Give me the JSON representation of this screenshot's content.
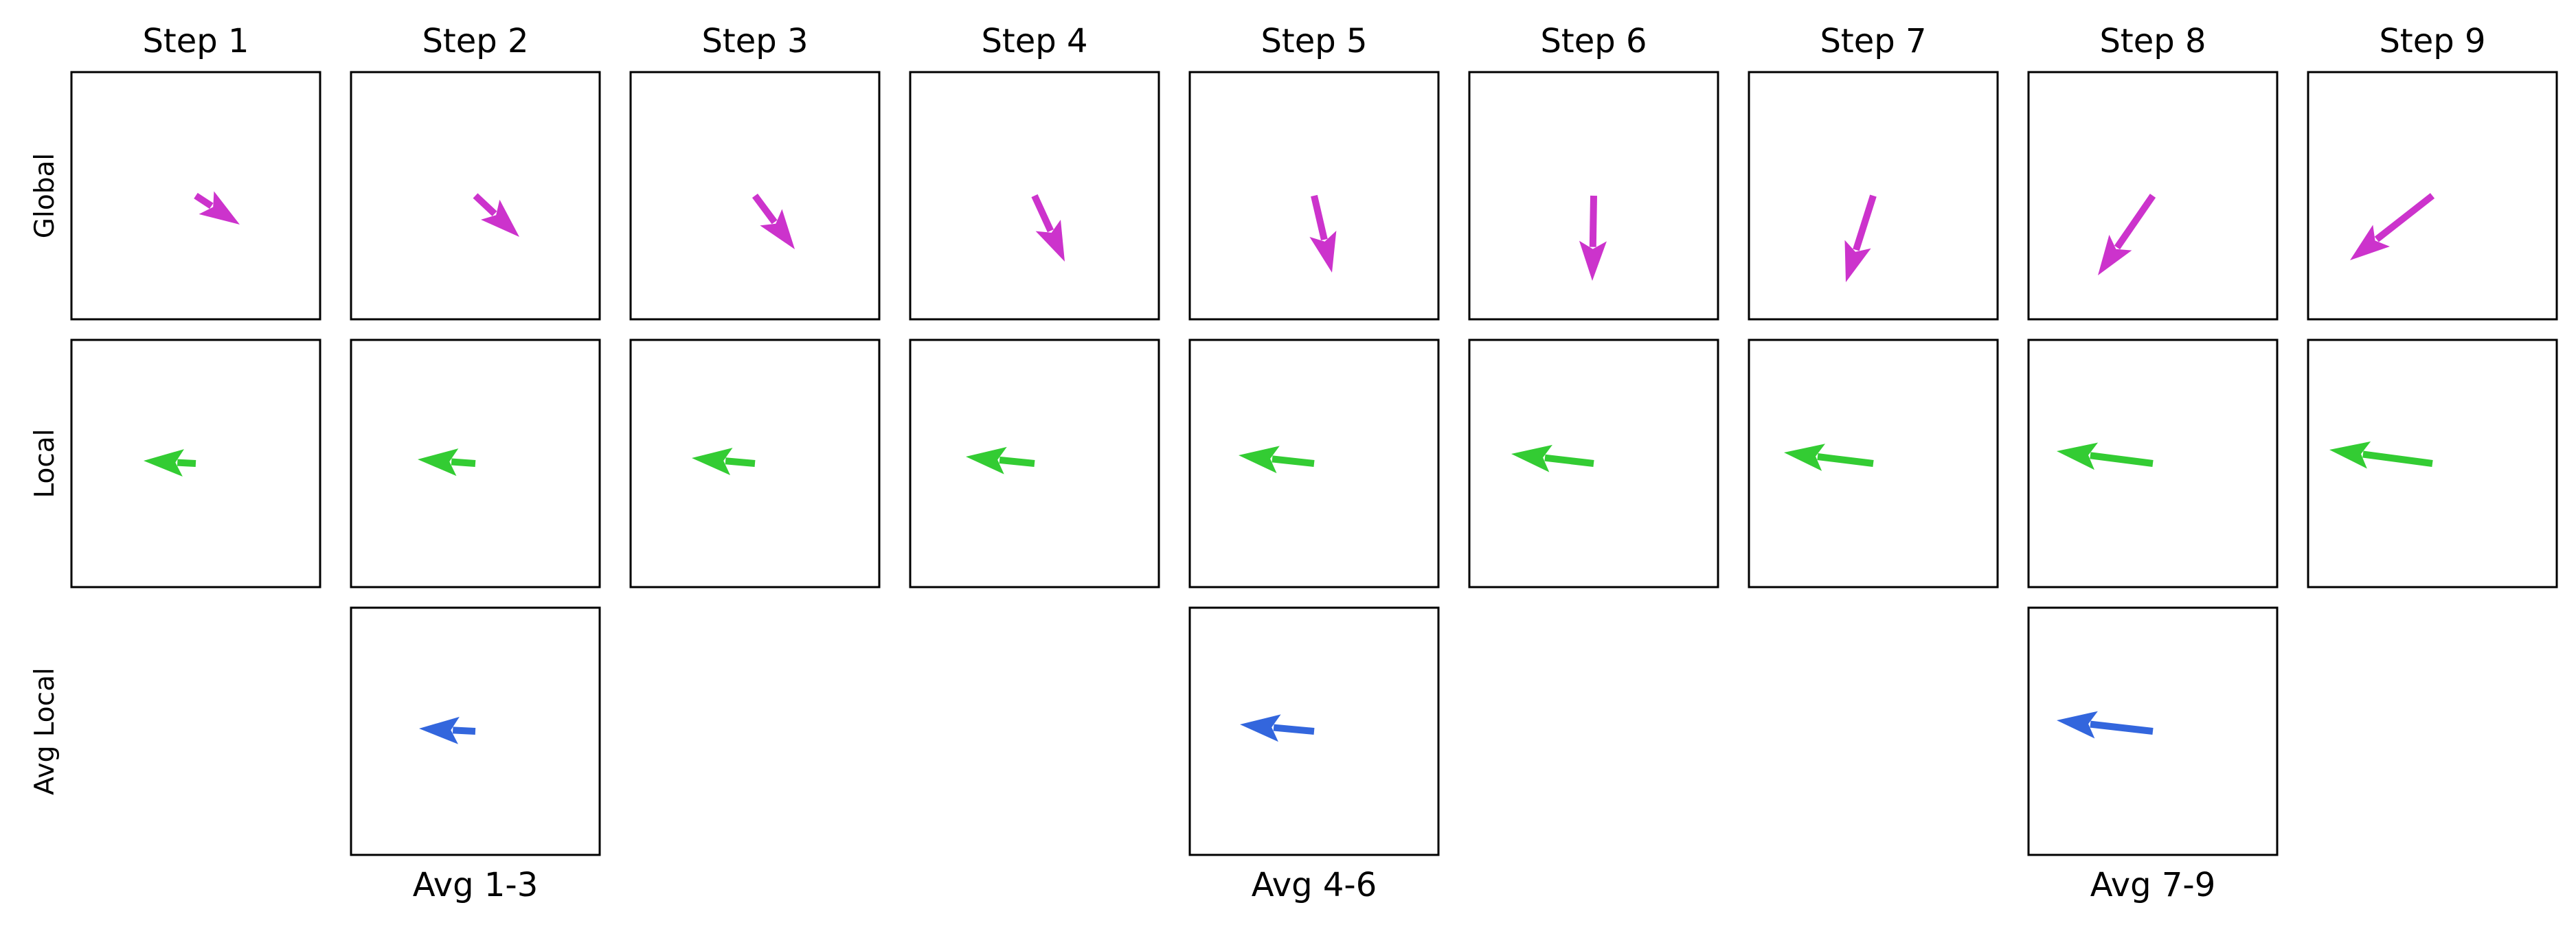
{
  "columns": [
    "Step 1",
    "Step 2",
    "Step 3",
    "Step 4",
    "Step 5",
    "Step 6",
    "Step 7",
    "Step 8",
    "Step 9"
  ],
  "rows": [
    {
      "key": "global",
      "label": "Global",
      "color": "#cc33cc",
      "vectors": [
        [
          0.32,
          -0.21
        ],
        [
          0.32,
          -0.3
        ],
        [
          0.29,
          -0.39
        ],
        [
          0.22,
          -0.48
        ],
        [
          0.13,
          -0.56
        ],
        [
          -0.01,
          -0.62
        ],
        [
          -0.2,
          -0.63
        ],
        [
          -0.4,
          -0.58
        ],
        [
          -0.6,
          -0.47
        ]
      ]
    },
    {
      "key": "local",
      "label": "Local",
      "color": "#33cc33",
      "vectors": [
        [
          -0.38,
          0.02
        ],
        [
          -0.42,
          0.03
        ],
        [
          -0.46,
          0.04
        ],
        [
          -0.5,
          0.05
        ],
        [
          -0.55,
          0.06
        ],
        [
          -0.6,
          0.07
        ],
        [
          -0.65,
          0.08
        ],
        [
          -0.7,
          0.09
        ],
        [
          -0.75,
          0.1
        ]
      ]
    },
    {
      "key": "avg_local",
      "label": "Avg Local",
      "color": "#3366dd",
      "panels": [
        {
          "column": 1,
          "caption": "Avg 1-3",
          "vector": [
            -0.41,
            0.02
          ]
        },
        {
          "column": 4,
          "caption": "Avg 4-6",
          "vector": [
            -0.54,
            0.05
          ]
        },
        {
          "column": 7,
          "caption": "Avg 7-9",
          "vector": [
            -0.7,
            0.08
          ]
        }
      ]
    }
  ]
}
